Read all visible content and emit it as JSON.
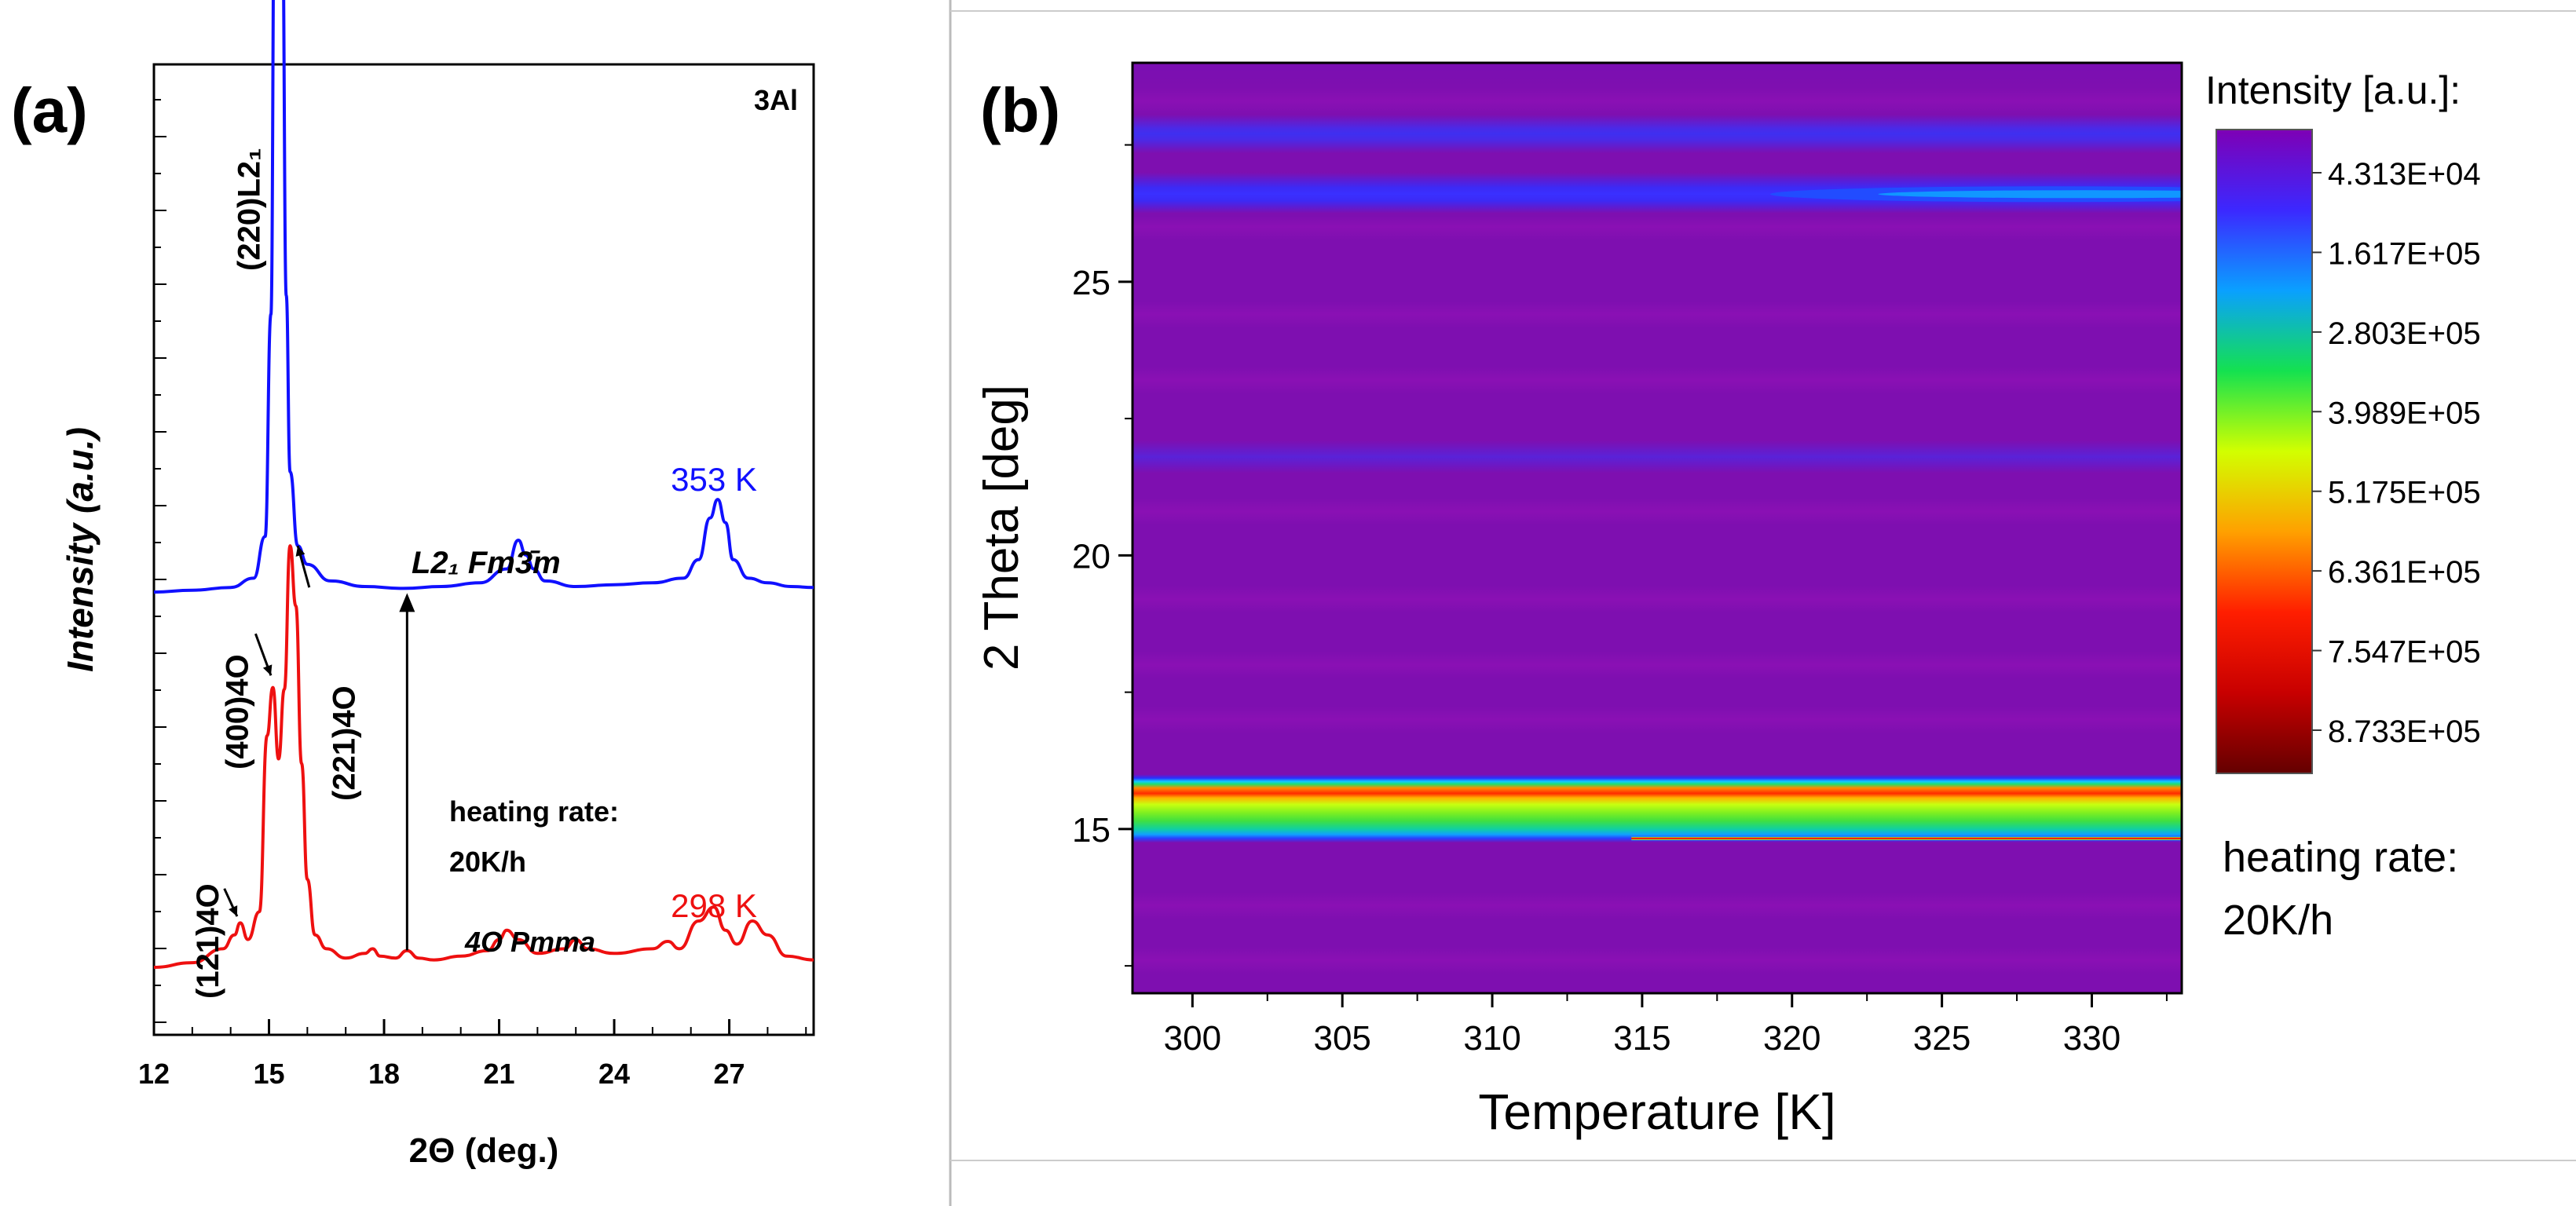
{
  "panel_a": {
    "label": "(a)",
    "sample": "3Al",
    "chart_data": {
      "type": "line",
      "title": "",
      "xlabel": "2Θ (deg.)",
      "ylabel": "Intensity (a.u.)",
      "xlim": [
        12,
        29.2
      ],
      "ylim": [
        0,
        1
      ],
      "xticks": [
        12,
        15,
        18,
        21,
        24,
        27
      ],
      "yticks_labeled": false,
      "series": [
        {
          "name": "353 K",
          "phase": "L2₁ Fm3̄m",
          "color": "#1010ff",
          "offset": 0.405,
          "x": [
            12.0,
            13.0,
            14.0,
            14.6,
            14.9,
            15.05,
            15.15,
            15.25,
            15.35,
            15.45,
            15.55,
            15.75,
            16.0,
            16.6,
            17.5,
            18.5,
            19.5,
            20.5,
            21.2,
            21.5,
            21.7,
            21.9,
            22.2,
            23.0,
            24.0,
            25.0,
            25.8,
            26.2,
            26.5,
            26.7,
            26.9,
            27.1,
            27.5,
            28.0,
            28.6,
            29.2
          ],
          "y": [
            0.0,
            0.002,
            0.005,
            0.015,
            0.06,
            0.3,
            0.78,
            0.955,
            0.72,
            0.32,
            0.13,
            0.05,
            0.03,
            0.012,
            0.006,
            0.004,
            0.006,
            0.01,
            0.025,
            0.056,
            0.04,
            0.025,
            0.012,
            0.006,
            0.008,
            0.01,
            0.015,
            0.035,
            0.08,
            0.1,
            0.075,
            0.035,
            0.015,
            0.01,
            0.006,
            0.005
          ]
        },
        {
          "name": "298 K",
          "phase": "4O Pmma",
          "color": "#ee1010",
          "offset": 0.0,
          "x": [
            12.0,
            13.0,
            13.8,
            14.1,
            14.25,
            14.45,
            14.75,
            14.95,
            15.1,
            15.25,
            15.4,
            15.55,
            15.7,
            15.85,
            16.0,
            16.2,
            16.5,
            17.0,
            17.5,
            17.7,
            17.9,
            18.3,
            18.6,
            18.9,
            19.3,
            20.0,
            20.7,
            21.0,
            21.2,
            21.5,
            22.0,
            22.7,
            23.0,
            23.3,
            24.0,
            25.0,
            25.4,
            25.7,
            26.2,
            26.6,
            26.9,
            27.2,
            27.6,
            28.0,
            28.5,
            29.2
          ],
          "y": [
            0.0,
            0.005,
            0.02,
            0.035,
            0.048,
            0.03,
            0.06,
            0.25,
            0.302,
            0.225,
            0.3,
            0.455,
            0.39,
            0.22,
            0.095,
            0.035,
            0.02,
            0.01,
            0.015,
            0.02,
            0.012,
            0.01,
            0.018,
            0.01,
            0.008,
            0.012,
            0.018,
            0.03,
            0.04,
            0.03,
            0.015,
            0.02,
            0.03,
            0.02,
            0.015,
            0.02,
            0.028,
            0.02,
            0.05,
            0.065,
            0.04,
            0.025,
            0.05,
            0.035,
            0.012,
            0.008
          ]
        }
      ],
      "annotations": [
        {
          "text": "(220)L2₁",
          "x": 15.25
        },
        {
          "text": "(121)4O",
          "x": 14.25
        },
        {
          "text": "(400)4O",
          "x": 15.1
        },
        {
          "text": "(221)4O",
          "x": 15.55
        },
        {
          "text": "heating rate:",
          "x": 18.5
        },
        {
          "text": "20K/h",
          "x": 18.5
        },
        {
          "text": "L2₁ Fm3̄m",
          "x": 17.0
        },
        {
          "text": "4O Pmma",
          "x": 18.6
        },
        {
          "text": "353 K",
          "x": 26.6
        },
        {
          "text": "298 K",
          "x": 26.6
        }
      ],
      "arrow": {
        "x": 18.6,
        "from": "298 K",
        "to": "353 K"
      }
    }
  },
  "panel_b": {
    "label": "(b)",
    "chart_data": {
      "type": "heatmap",
      "title": "",
      "xlabel": "Temperature [K]",
      "ylabel": "2 Theta [deg]",
      "xlim": [
        298,
        333
      ],
      "ylim": [
        12,
        29
      ],
      "xticks": [
        300,
        305,
        310,
        315,
        320,
        325,
        330
      ],
      "yticks": [
        15,
        20,
        25
      ],
      "colorbar_title": "Intensity [a.u.]:",
      "colorbar_ticks": [
        "4.313E+04",
        "1.617E+05",
        "2.803E+05",
        "3.989E+05",
        "5.175E+05",
        "6.361E+05",
        "7.547E+05",
        "8.733E+05"
      ],
      "colorbar_colors": [
        "#7e00b5",
        "#3c28ff",
        "#0aa0ff",
        "#14e150",
        "#d2ff00",
        "#ffa000",
        "#ff1e00",
        "#c80000",
        "#640000"
      ],
      "background_color": "#7e0fb0",
      "features": [
        {
          "name": "main peak",
          "theta_before": 15.35,
          "theta_after": 15.2,
          "transition_K": 317,
          "half_width_deg": 0.55,
          "peak_intensity": 700000.0
        },
        {
          "name": "high-angle peak",
          "theta_before": 27.7,
          "theta_after": 26.6,
          "transition_K": 318,
          "peak_intensity": 160000.0
        },
        {
          "name": "minor peak",
          "theta_before": 21.8,
          "theta_after": 21.8,
          "peak_intensity": 100000.0
        }
      ],
      "annotation": [
        "heating rate:",
        "20K/h"
      ]
    }
  },
  "colors": {
    "blue_curve": "#1010ff",
    "red_curve": "#ee1010",
    "axis": "#000000",
    "frame_grey": "#bbbbbb"
  }
}
